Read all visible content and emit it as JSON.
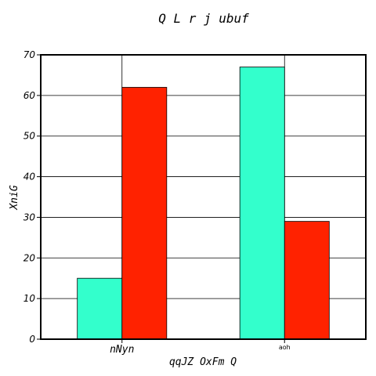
{
  "chart_data": {
    "type": "bar",
    "title": "Q  L r j  ubuf",
    "xlabel": "qqJZ  OxFm Q",
    "ylabel": "XniG",
    "categories": [
      "nNyn",
      "aoh"
    ],
    "series": [
      {
        "color": "#33ffcc",
        "values": [
          15,
          67
        ]
      },
      {
        "color": "#ff2200",
        "values": [
          62,
          29
        ]
      }
    ],
    "ylim": [
      0,
      70
    ],
    "yticks": [
      0,
      10,
      20,
      30,
      40,
      50,
      60,
      70
    ],
    "grid": true,
    "legend": "none"
  }
}
